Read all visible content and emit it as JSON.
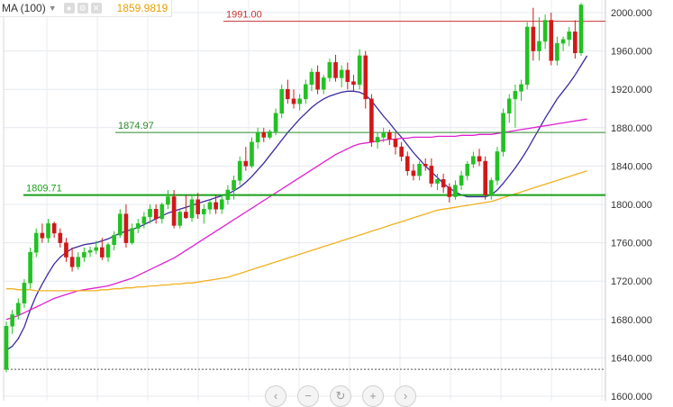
{
  "indicator_bar": {
    "label": "MA (100)",
    "value": "1859.9819",
    "buttons": [
      "eye-icon",
      "settings-icon",
      "close-icon"
    ]
  },
  "zoom_controls": [
    {
      "name": "scroll-left-button",
      "glyph": "‹"
    },
    {
      "name": "zoom-out-button",
      "glyph": "−"
    },
    {
      "name": "reset-button",
      "glyph": "↻"
    },
    {
      "name": "zoom-in-button",
      "glyph": "+"
    },
    {
      "name": "scroll-right-button",
      "glyph": "›"
    }
  ],
  "chart_data": {
    "type": "candlestick",
    "ylim": [
      1600,
      2010
    ],
    "y_ticks": [
      1600,
      1640,
      1680,
      1720,
      1760,
      1800,
      1840,
      1880,
      1920,
      1960,
      2000
    ],
    "y_tick_labels": [
      "1600.000",
      "1640.000",
      "1680.000",
      "1720.000",
      "1760.000",
      "1800.000",
      "1840.000",
      "1880.000",
      "1920.000",
      "1960.000",
      "2000.000"
    ],
    "grid": true,
    "colors": {
      "up": "#22c122",
      "down": "#d01818",
      "ma_short": "#3a2aa0",
      "ma_mid": "#e020d0",
      "ma_long": "#f0b020",
      "line_1991": "#c83030",
      "line_1874": "#2a8a2a",
      "line_1809": "#18a018",
      "dotted": "#555555"
    },
    "horizontal_lines": [
      {
        "label": "1991.00",
        "value": 1991.0
      },
      {
        "label": "1874.97",
        "value": 1874.97
      },
      {
        "label": "1809.71",
        "value": 1809.71
      },
      {
        "label": "",
        "value": 1628,
        "style": "dotted"
      }
    ],
    "candles": [
      [
        1628,
        1678,
        1625,
        1673
      ],
      [
        1673,
        1690,
        1665,
        1685
      ],
      [
        1685,
        1702,
        1680,
        1697
      ],
      [
        1697,
        1722,
        1692,
        1718
      ],
      [
        1718,
        1755,
        1712,
        1750
      ],
      [
        1750,
        1775,
        1745,
        1770
      ],
      [
        1770,
        1780,
        1760,
        1765
      ],
      [
        1765,
        1785,
        1760,
        1780
      ],
      [
        1780,
        1782,
        1765,
        1770
      ],
      [
        1770,
        1775,
        1755,
        1760
      ],
      [
        1760,
        1765,
        1740,
        1745
      ],
      [
        1745,
        1755,
        1730,
        1735
      ],
      [
        1735,
        1750,
        1732,
        1745
      ],
      [
        1745,
        1755,
        1740,
        1750
      ],
      [
        1750,
        1756,
        1745,
        1752
      ],
      [
        1752,
        1762,
        1748,
        1755
      ],
      [
        1755,
        1765,
        1742,
        1745
      ],
      [
        1745,
        1760,
        1740,
        1758
      ],
      [
        1758,
        1772,
        1752,
        1768
      ],
      [
        1768,
        1795,
        1765,
        1790
      ],
      [
        1790,
        1800,
        1755,
        1760
      ],
      [
        1760,
        1780,
        1758,
        1775
      ],
      [
        1775,
        1785,
        1770,
        1780
      ],
      [
        1780,
        1792,
        1775,
        1787
      ],
      [
        1787,
        1800,
        1780,
        1795
      ],
      [
        1795,
        1800,
        1780,
        1785
      ],
      [
        1785,
        1802,
        1780,
        1800
      ],
      [
        1800,
        1815,
        1795,
        1808
      ],
      [
        1808,
        1815,
        1775,
        1778
      ],
      [
        1778,
        1795,
        1775,
        1792
      ],
      [
        1792,
        1810,
        1785,
        1786
      ],
      [
        1786,
        1810,
        1782,
        1805
      ],
      [
        1805,
        1812,
        1785,
        1790
      ],
      [
        1790,
        1800,
        1780,
        1795
      ],
      [
        1795,
        1805,
        1790,
        1802
      ],
      [
        1802,
        1810,
        1790,
        1795
      ],
      [
        1795,
        1810,
        1790,
        1805
      ],
      [
        1805,
        1820,
        1800,
        1815
      ],
      [
        1815,
        1830,
        1805,
        1825
      ],
      [
        1825,
        1850,
        1820,
        1845
      ],
      [
        1845,
        1860,
        1835,
        1840
      ],
      [
        1840,
        1870,
        1838,
        1865
      ],
      [
        1865,
        1880,
        1858,
        1875
      ],
      [
        1875,
        1880,
        1865,
        1870
      ],
      [
        1870,
        1878,
        1868,
        1876
      ],
      [
        1876,
        1900,
        1872,
        1895
      ],
      [
        1895,
        1925,
        1890,
        1920
      ],
      [
        1920,
        1930,
        1905,
        1910
      ],
      [
        1910,
        1920,
        1900,
        1905
      ],
      [
        1905,
        1915,
        1898,
        1910
      ],
      [
        1910,
        1930,
        1905,
        1925
      ],
      [
        1925,
        1942,
        1918,
        1938
      ],
      [
        1938,
        1945,
        1915,
        1920
      ],
      [
        1920,
        1935,
        1915,
        1932
      ],
      [
        1932,
        1952,
        1928,
        1948
      ],
      [
        1948,
        1956,
        1928,
        1932
      ],
      [
        1932,
        1945,
        1922,
        1940
      ],
      [
        1940,
        1948,
        1920,
        1928
      ],
      [
        1928,
        1935,
        1918,
        1925
      ],
      [
        1925,
        1962,
        1920,
        1955
      ],
      [
        1955,
        1960,
        1900,
        1910
      ],
      [
        1910,
        1915,
        1860,
        1865
      ],
      [
        1865,
        1875,
        1858,
        1870
      ],
      [
        1870,
        1880,
        1865,
        1875
      ],
      [
        1875,
        1878,
        1862,
        1868
      ],
      [
        1868,
        1875,
        1852,
        1860
      ],
      [
        1860,
        1865,
        1845,
        1850
      ],
      [
        1850,
        1855,
        1830,
        1835
      ],
      [
        1835,
        1842,
        1825,
        1830
      ],
      [
        1830,
        1845,
        1825,
        1842
      ],
      [
        1842,
        1848,
        1835,
        1840
      ],
      [
        1840,
        1848,
        1818,
        1822
      ],
      [
        1822,
        1832,
        1815,
        1826
      ],
      [
        1826,
        1832,
        1812,
        1818
      ],
      [
        1818,
        1822,
        1802,
        1808
      ],
      [
        1808,
        1825,
        1805,
        1820
      ],
      [
        1820,
        1835,
        1815,
        1830
      ],
      [
        1830,
        1845,
        1825,
        1842
      ],
      [
        1842,
        1855,
        1838,
        1850
      ],
      [
        1850,
        1858,
        1840,
        1845
      ],
      [
        1845,
        1850,
        1805,
        1810
      ],
      [
        1810,
        1828,
        1805,
        1825
      ],
      [
        1825,
        1860,
        1820,
        1855
      ],
      [
        1855,
        1900,
        1850,
        1895
      ],
      [
        1895,
        1915,
        1885,
        1910
      ],
      [
        1910,
        1925,
        1880,
        1918
      ],
      [
        1918,
        1930,
        1908,
        1925
      ],
      [
        1925,
        1990,
        1920,
        1985
      ],
      [
        1985,
        2005,
        1950,
        1960
      ],
      [
        1960,
        1995,
        1950,
        1970
      ],
      [
        1970,
        1998,
        1962,
        1992
      ],
      [
        1992,
        2000,
        1945,
        1950
      ],
      [
        1950,
        1975,
        1945,
        1968
      ],
      [
        1968,
        1975,
        1960,
        1972
      ],
      [
        1972,
        1985,
        1965,
        1980
      ],
      [
        1980,
        1992,
        1952,
        1958
      ],
      [
        1958,
        2010,
        1955,
        2008
      ]
    ],
    "ma_series": [
      {
        "label": "",
        "color_key": "ma_short",
        "values": [
          1648,
          1652,
          1660,
          1672,
          1690,
          1705,
          1717,
          1728,
          1738,
          1745,
          1750,
          1754,
          1756,
          1758,
          1759,
          1760,
          1762,
          1764,
          1767,
          1770,
          1772,
          1774,
          1776,
          1779,
          1782,
          1785,
          1788,
          1791,
          1793,
          1795,
          1797,
          1799,
          1801,
          1803,
          1805,
          1807,
          1809,
          1811,
          1814,
          1818,
          1823,
          1829,
          1836,
          1843,
          1851,
          1859,
          1867,
          1875,
          1882,
          1889,
          1895,
          1901,
          1906,
          1910,
          1913,
          1915,
          1917,
          1918,
          1918,
          1917,
          1914,
          1908,
          1900,
          1892,
          1885,
          1877,
          1870,
          1862,
          1854,
          1847,
          1840,
          1834,
          1828,
          1822,
          1817,
          1813,
          1810,
          1808,
          1808,
          1808,
          1808,
          1810,
          1815,
          1822,
          1830,
          1838,
          1847,
          1857,
          1868,
          1879,
          1890,
          1900,
          1910,
          1918,
          1926,
          1935,
          1945,
          1955
        ]
      },
      {
        "label": "",
        "color_key": "ma_mid",
        "values": [
          1680,
          1682,
          1684,
          1687,
          1690,
          1693,
          1696,
          1699,
          1702,
          1704,
          1706,
          1708,
          1710,
          1711,
          1712,
          1713,
          1714,
          1715,
          1717,
          1719,
          1721,
          1723,
          1726,
          1729,
          1732,
          1735,
          1738,
          1741,
          1744,
          1748,
          1752,
          1756,
          1760,
          1764,
          1768,
          1772,
          1776,
          1780,
          1784,
          1788,
          1792,
          1796,
          1800,
          1804,
          1808,
          1812,
          1816,
          1820,
          1824,
          1828,
          1832,
          1836,
          1840,
          1844,
          1848,
          1852,
          1855,
          1858,
          1861,
          1863,
          1864,
          1865,
          1866,
          1867,
          1868,
          1868,
          1869,
          1869,
          1870,
          1870,
          1870,
          1870,
          1871,
          1871,
          1871,
          1871,
          1872,
          1872,
          1872,
          1873,
          1873,
          1873,
          1874,
          1875,
          1876,
          1877,
          1878,
          1879,
          1880,
          1881,
          1882,
          1883,
          1884,
          1885,
          1886,
          1887,
          1888,
          1889
        ]
      },
      {
        "label": "",
        "color_key": "ma_long",
        "values": [
          1712,
          1712,
          1711,
          1711,
          1711,
          1710,
          1710,
          1710,
          1710,
          1710,
          1710,
          1710,
          1710,
          1710,
          1710,
          1710,
          1711,
          1711,
          1712,
          1712,
          1713,
          1713,
          1714,
          1714,
          1715,
          1715,
          1716,
          1716,
          1717,
          1717,
          1718,
          1718,
          1719,
          1720,
          1721,
          1722,
          1723,
          1724,
          1726,
          1728,
          1730,
          1732,
          1734,
          1736,
          1738,
          1740,
          1742,
          1744,
          1746,
          1748,
          1750,
          1752,
          1754,
          1756,
          1758,
          1760,
          1762,
          1764,
          1766,
          1768,
          1770,
          1772,
          1774,
          1776,
          1778,
          1780,
          1782,
          1784,
          1786,
          1788,
          1790,
          1792,
          1794,
          1795,
          1796,
          1797,
          1798,
          1799,
          1800,
          1801,
          1802,
          1803,
          1805,
          1807,
          1809,
          1811,
          1813,
          1815,
          1817,
          1819,
          1821,
          1823,
          1825,
          1827,
          1829,
          1831,
          1833,
          1835
        ]
      }
    ]
  }
}
